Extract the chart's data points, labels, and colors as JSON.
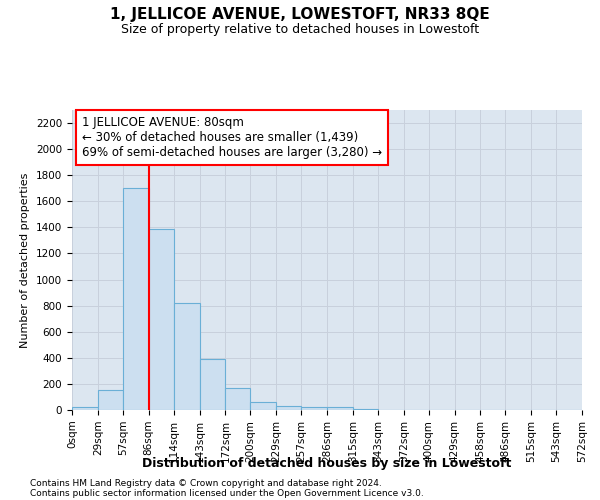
{
  "title": "1, JELLICOE AVENUE, LOWESTOFT, NR33 8QE",
  "subtitle": "Size of property relative to detached houses in Lowestoft",
  "xlabel": "Distribution of detached houses by size in Lowestoft",
  "ylabel": "Number of detached properties",
  "footnote1": "Contains HM Land Registry data © Crown copyright and database right 2024.",
  "footnote2": "Contains public sector information licensed under the Open Government Licence v3.0.",
  "annotation_line1": "1 JELLICOE AVENUE: 80sqm",
  "annotation_line2": "← 30% of detached houses are smaller (1,439)",
  "annotation_line3": "69% of semi-detached houses are larger (3,280) →",
  "bin_edges": [
    0,
    29,
    57,
    86,
    114,
    143,
    172,
    200,
    229,
    257,
    286,
    315,
    343,
    372,
    400,
    429,
    458,
    486,
    515,
    543,
    572
  ],
  "bar_heights": [
    20,
    155,
    1700,
    1390,
    820,
    390,
    165,
    65,
    30,
    25,
    25,
    5,
    0,
    0,
    0,
    0,
    0,
    0,
    0,
    0
  ],
  "bar_color": "#ccdff0",
  "bar_edge_color": "#6aafd6",
  "red_line_x": 86,
  "ylim": [
    0,
    2300
  ],
  "yticks": [
    0,
    200,
    400,
    600,
    800,
    1000,
    1200,
    1400,
    1600,
    1800,
    2000,
    2200
  ],
  "grid_color": "#c8d0dc",
  "background_color": "#dce6f0",
  "title_fontsize": 11,
  "subtitle_fontsize": 9,
  "ylabel_fontsize": 8,
  "xlabel_fontsize": 9,
  "tick_fontsize": 7.5,
  "annotation_fontsize": 8.5,
  "footnote_fontsize": 6.5
}
